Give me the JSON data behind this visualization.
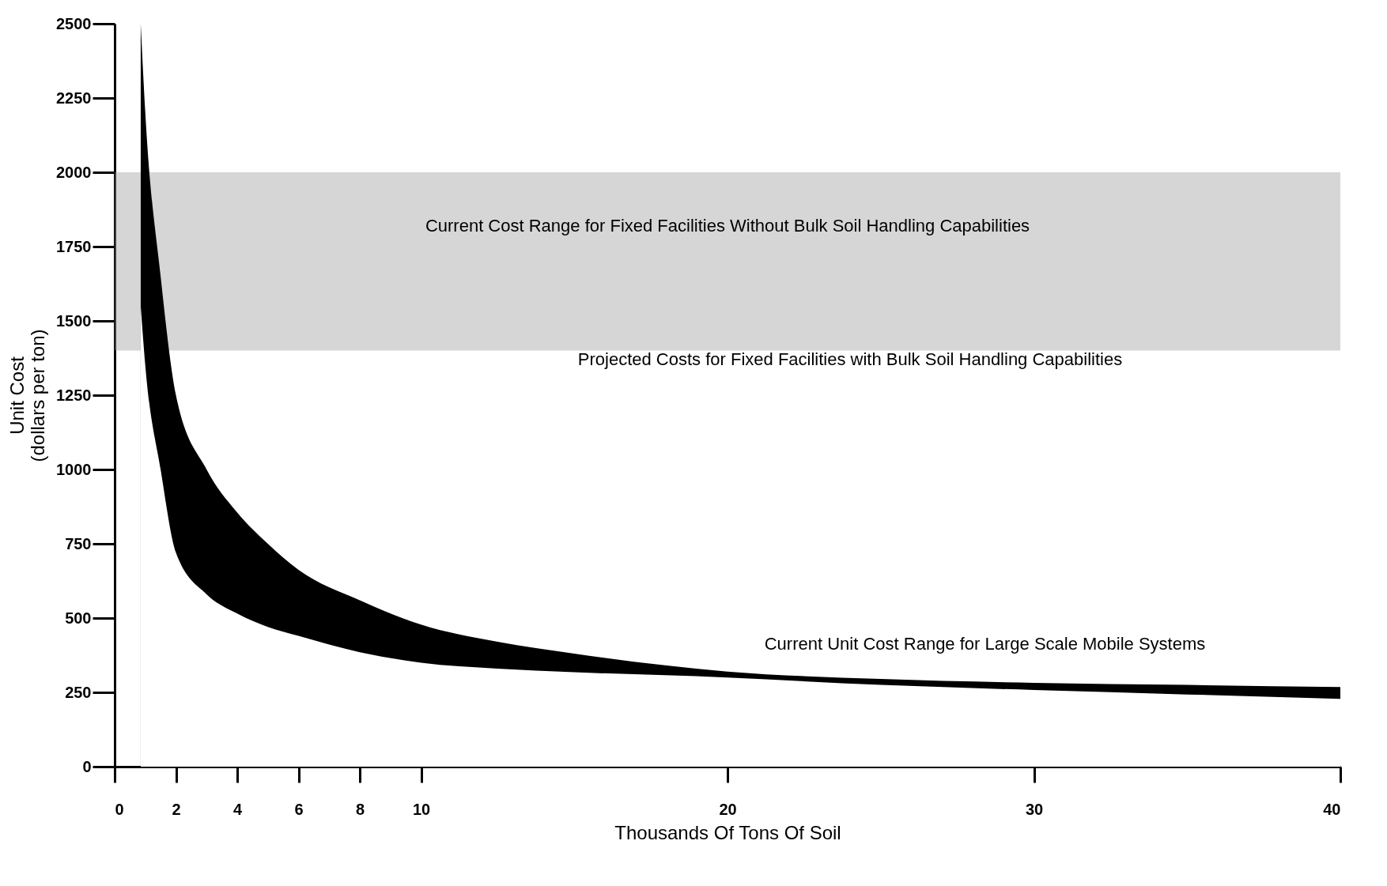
{
  "chart_data": {
    "type": "area",
    "xlabel": "Thousands Of Tons Of Soil",
    "ylabel": "Unit Cost\n(dollars per ton)",
    "xlim": [
      0,
      40
    ],
    "ylim": [
      0,
      2500
    ],
    "xticks": [
      0,
      2,
      4,
      6,
      8,
      10,
      20,
      30,
      40
    ],
    "yticks": [
      0,
      250,
      500,
      750,
      1000,
      1250,
      1500,
      1750,
      2000,
      2250,
      2500
    ],
    "grid": false,
    "series": [
      {
        "color": "#000000",
        "x": [
          0.85,
          1,
          1.5,
          2,
          3,
          4,
          5,
          6,
          8,
          10,
          12.5,
          15,
          20,
          25,
          30,
          35,
          40
        ],
        "values": [
          2500,
          2200,
          1650,
          1250,
          1000,
          855,
          750,
          662,
          560,
          478,
          420,
          380,
          320,
          295,
          282,
          275,
          268
        ]
      },
      {
        "color": "#ffffff",
        "x": [
          0.85,
          1,
          1.5,
          2,
          3,
          4,
          5,
          6,
          8,
          10,
          12.5,
          15,
          20,
          25,
          30,
          35,
          40
        ],
        "values": [
          1550,
          1350,
          1000,
          720,
          580,
          515,
          470,
          440,
          385,
          350,
          330,
          318,
          300,
          275,
          258,
          243,
          228
        ]
      }
    ],
    "bands": [
      {
        "axis": "y",
        "from": 1400,
        "to": 2000,
        "label": "Current Cost Range for Fixed Facilities Without Bulk Soil Handling Capabilities",
        "color": "#999999"
      }
    ],
    "annotations": [
      "Projected Costs for Fixed Facilities with Bulk Soil Handling Capabilities",
      "Current Unit Cost Range for Large Scale Mobile Systems"
    ]
  }
}
